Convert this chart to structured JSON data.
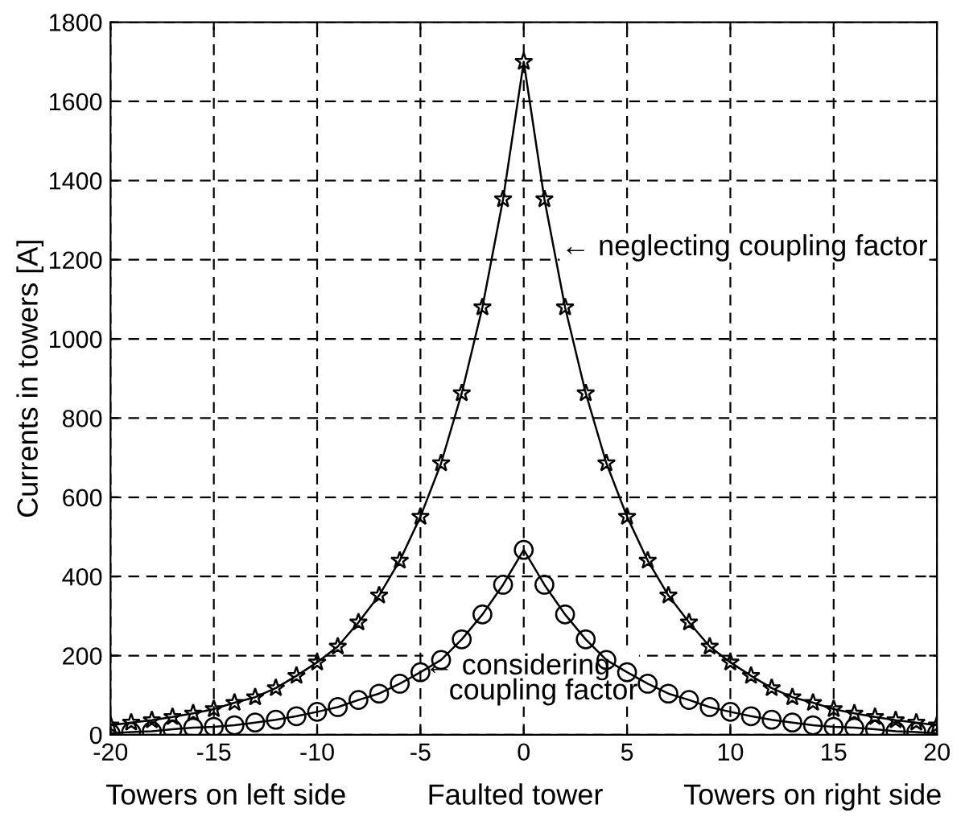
{
  "chart_data": {
    "type": "line",
    "ylabel": "Currents in towers [A]",
    "xlabel": "Towers on left side          Faulted tower          Towers on right side",
    "x": [
      -20,
      -19,
      -18,
      -17,
      -16,
      -15,
      -14,
      -13,
      -12,
      -11,
      -10,
      -9,
      -8,
      -7,
      -6,
      -5,
      -4,
      -3,
      -2,
      -1,
      0,
      1,
      2,
      3,
      4,
      5,
      6,
      7,
      8,
      9,
      10,
      11,
      12,
      13,
      14,
      15,
      16,
      17,
      18,
      19,
      20
    ],
    "series": [
      {
        "color": "#000000",
        "marker": "star",
        "values": [
          24,
          31,
          37,
          45,
          54,
          65,
          81,
          95,
          118,
          149,
          183,
          223,
          284,
          352,
          440,
          551,
          686,
          863,
          1080,
          1353,
          1700,
          1353,
          1080,
          863,
          686,
          551,
          440,
          352,
          284,
          223,
          183,
          149,
          118,
          95,
          81,
          65,
          54,
          45,
          37,
          31,
          24
        ]
      },
      {
        "color": "#000000",
        "marker": "circle",
        "values": [
          4,
          7,
          9,
          14,
          18,
          20,
          24,
          31,
          38,
          47,
          58,
          70,
          88,
          104,
          129,
          158,
          189,
          241,
          304,
          379,
          467,
          379,
          304,
          241,
          189,
          158,
          129,
          104,
          88,
          70,
          58,
          47,
          38,
          31,
          24,
          20,
          18,
          14,
          9,
          7,
          4
        ]
      }
    ],
    "annotations": [
      {
        "text": "← neglecting coupling factor",
        "x": 1.8,
        "y": 1230
      },
      {
        "text": "← considering\n   coupling factor",
        "x": -4.8,
        "y": 140
      }
    ],
    "xlim": [
      -20,
      20
    ],
    "xticks": [
      -20,
      -15,
      -10,
      -5,
      0,
      5,
      10,
      15,
      20
    ],
    "ylim": [
      0,
      1800
    ],
    "yticks": [
      0,
      200,
      400,
      600,
      800,
      1000,
      1200,
      1400,
      1600,
      1800
    ],
    "grid": true,
    "line_style": "solid",
    "legend": false
  }
}
